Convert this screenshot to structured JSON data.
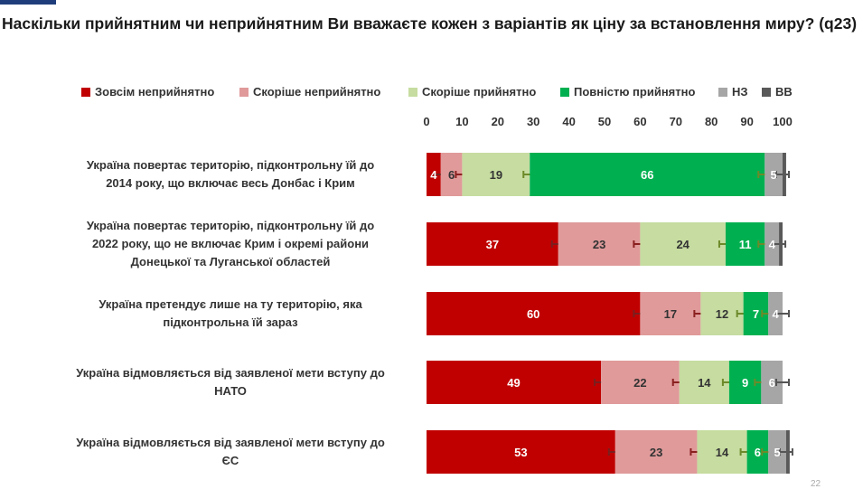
{
  "title": "Наскільки прийнятним чи неприйнятним Ви вважаєте кожен з варіантів як ціну за встановлення миру? (q23)",
  "page_number": "22",
  "chart_data": {
    "type": "bar",
    "stacked": true,
    "orientation": "horizontal",
    "xlim": [
      0,
      100
    ],
    "ticks": [
      0,
      10,
      20,
      30,
      40,
      50,
      60,
      70,
      80,
      90,
      100
    ],
    "legend_position": "top",
    "categories": [
      "Україна повертає територію, підконтрольну їй до 2014 року, що включає весь Донбас і Крим",
      "Україна повертає територію, підконтрольну їй до 2022 року, що не включає Крим і окремі райони Донецької та Луганської областей",
      "Україна претендує лише на ту територію, яка підконтрольна їй зараз",
      "Україна відмовляється  від заявленої мети вступу до НАТО",
      "Україна відмовляється  від заявленої мети вступу до ЄС"
    ],
    "category_lines": [
      [
        "Україна повертає територію, підконтрольну їй до",
        "2014 року, що включає весь Донбас і Крим"
      ],
      [
        "Україна повертає територію, підконтрольну їй до",
        "2022 року, що не включає Крим і окремі райони",
        "Донецької та Луганської областей"
      ],
      [
        "Україна претендує лише на ту територію, яка",
        "підконтрольна їй зараз"
      ],
      [
        "Україна відмовляється  від заявленої мети вступу до",
        "НАТО"
      ],
      [
        "Україна відмовляється  від заявленої мети вступу до",
        "ЄС"
      ]
    ],
    "series": [
      {
        "name": "Зовсім неприйнятно",
        "color": "#c00000",
        "error_color": "#7a1f1f",
        "values": [
          4,
          37,
          60,
          49,
          53
        ]
      },
      {
        "name": "Скоріше неприйнятно",
        "color": "#e09a9a",
        "error_color": "#8b2020",
        "values": [
          6,
          23,
          17,
          22,
          23
        ]
      },
      {
        "name": "Скоріше прийнятно",
        "color": "#c6dca0",
        "error_color": "#6d8a2a",
        "values": [
          19,
          24,
          12,
          14,
          14
        ]
      },
      {
        "name": "Повністю прийнятно",
        "color": "#00b050",
        "error_color": "#6d8a2a",
        "values": [
          66,
          11,
          7,
          9,
          6
        ]
      },
      {
        "name": "НЗ",
        "color": "#a6a6a6",
        "error_color": "#555555",
        "values": [
          5,
          4,
          4,
          6,
          5
        ]
      },
      {
        "name": "ВВ",
        "color": "#595959",
        "error_color": "#222222",
        "values": [
          1,
          1,
          0,
          0,
          1
        ]
      }
    ]
  }
}
